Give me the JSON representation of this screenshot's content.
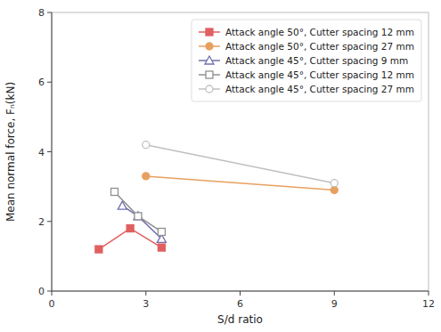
{
  "chart_data": {
    "type": "line",
    "xlabel": "S/d ratio",
    "ylabel": "Mean normal force, Fₙ(kN)",
    "xlim": [
      0,
      12
    ],
    "ylim": [
      0,
      8
    ],
    "xticks": [
      0,
      3,
      6,
      9,
      12
    ],
    "yticks": [
      0,
      2,
      4,
      6,
      8
    ],
    "grid": false,
    "legend": "upper right",
    "series": [
      {
        "name": "Attack angle 50°, Cutter spacing 12 mm",
        "color": "#e06060",
        "marker": "square",
        "line_style": "solid",
        "x": [
          1.5,
          2.5,
          3.5
        ],
        "values": [
          1.2,
          1.8,
          1.25
        ]
      },
      {
        "name": "Attack angle 50°, Cutter spacing 27 mm",
        "color": "#e8a060",
        "marker": "circle",
        "line_style": "solid",
        "x": [
          3.0,
          9.0
        ],
        "values": [
          3.3,
          2.9
        ]
      },
      {
        "name": "Attack angle 45°, Cutter spacing 9 mm",
        "color": "#7070b0",
        "marker": "open-triangle",
        "line_style": "solid",
        "x": [
          2.25,
          2.75,
          3.5
        ],
        "values": [
          2.45,
          2.15,
          1.5
        ]
      },
      {
        "name": "Attack angle 45°, Cutter spacing 12 mm",
        "color": "#909090",
        "marker": "open-square",
        "line_style": "solid",
        "x": [
          2.0,
          2.75,
          3.5
        ],
        "values": [
          2.85,
          2.15,
          1.7
        ]
      },
      {
        "name": "Attack angle 45°, Cutter spacing 27 mm",
        "color": "#c0c0c0",
        "marker": "open-circle",
        "line_style": "solid",
        "x": [
          3.0,
          9.0
        ],
        "values": [
          4.2,
          3.1
        ]
      }
    ]
  }
}
